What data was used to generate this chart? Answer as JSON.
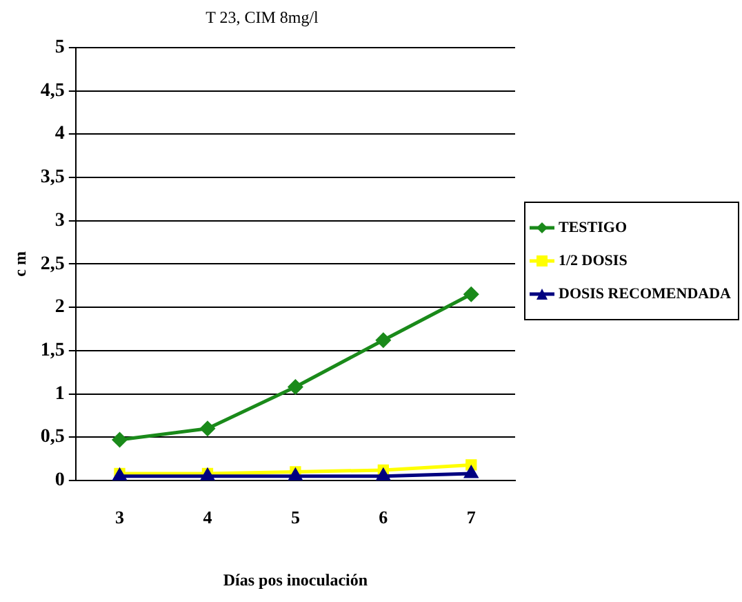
{
  "chart_data": {
    "type": "line",
    "title": "T 23, CIM 8mg/l",
    "xlabel": "Días pos inoculación",
    "ylabel": "c m",
    "categories": [
      "3",
      "4",
      "5",
      "6",
      "7"
    ],
    "series": [
      {
        "name": "TESTIGO",
        "color": "#1a8a1a",
        "marker": "diamond",
        "values": [
          0.47,
          0.6,
          1.08,
          1.62,
          2.15
        ]
      },
      {
        "name": "1/2 DOSIS",
        "color": "#ffff00",
        "marker": "square",
        "values": [
          0.08,
          0.08,
          0.1,
          0.12,
          0.18
        ]
      },
      {
        "name": "DOSIS RECOMENDADA",
        "color": "#000080",
        "marker": "triangle",
        "values": [
          0.05,
          0.05,
          0.05,
          0.05,
          0.08
        ]
      }
    ],
    "ylim": [
      0,
      5
    ],
    "yticks": [
      0,
      {
        "value": 0.5,
        "label": "0,5"
      },
      1,
      {
        "value": 1.5,
        "label": "1,5"
      },
      2,
      {
        "value": 2.5,
        "label": "2,5"
      },
      3,
      {
        "value": 3.5,
        "label": "3,5"
      },
      4,
      {
        "value": 4.5,
        "label": "4,5"
      },
      5
    ],
    "grid": "y",
    "legend": "right"
  }
}
